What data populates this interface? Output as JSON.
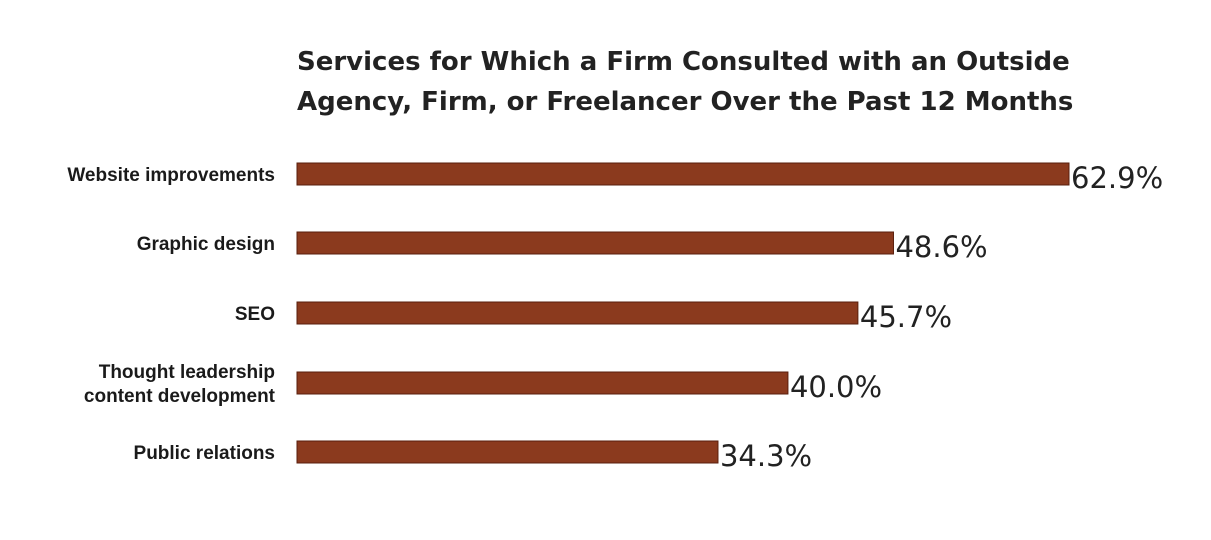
{
  "chart_data": {
    "type": "bar",
    "orientation": "horizontal",
    "title": [
      "Services for Which a Firm Consulted with an Outside",
      "Agency, Firm, or Freelancer Over the Past 12 Months"
    ],
    "categories": [
      [
        "Website improvements"
      ],
      [
        "Graphic design"
      ],
      [
        "SEO"
      ],
      [
        "Thought leadership",
        "content development"
      ],
      [
        "Public relations"
      ]
    ],
    "values": [
      62.9,
      48.6,
      45.7,
      40.0,
      34.3
    ],
    "value_labels": [
      "62.9%",
      "48.6%",
      "45.7%",
      "40.0%",
      "34.3%"
    ],
    "xlim": [
      0,
      62.9
    ],
    "grid": false,
    "legend": "none",
    "colors": {
      "bar": "#8B3A1E",
      "text": "#222222"
    }
  }
}
